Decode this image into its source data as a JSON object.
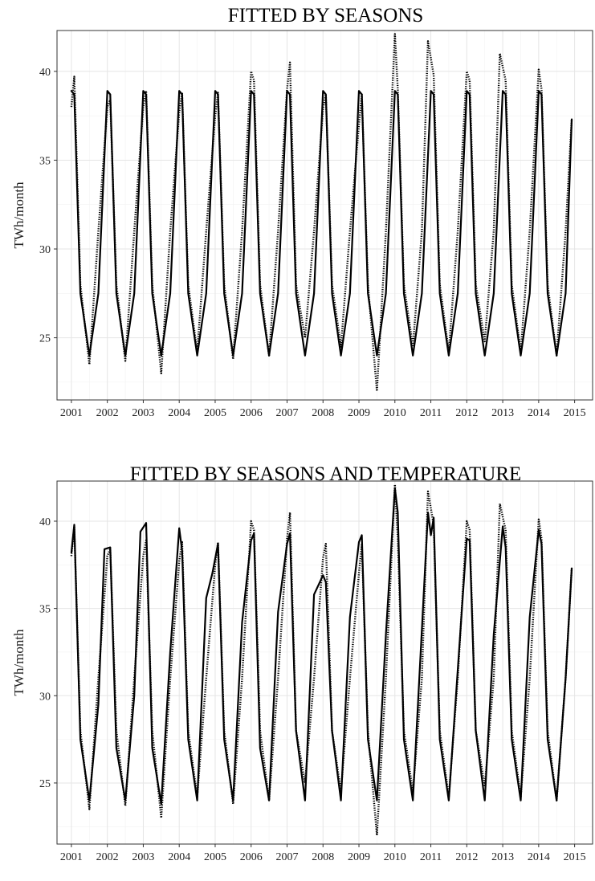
{
  "chart_data": [
    {
      "type": "line",
      "title": "FITTED BY SEASONS",
      "xlabel": "",
      "ylabel": "TWh/month",
      "x_ticks": [
        "2001",
        "2002",
        "2003",
        "2004",
        "2005",
        "2006",
        "2007",
        "2008",
        "2009",
        "2010",
        "2011",
        "2012",
        "2013",
        "2014",
        "2015"
      ],
      "y_ticks": [
        25,
        30,
        35,
        40
      ],
      "xlim": [
        2000.6,
        2015.5
      ],
      "ylim": [
        21.5,
        42.3
      ],
      "grid": true,
      "series": [
        {
          "style": "dotted",
          "x": [
            2001.0,
            2001.08,
            2001.25,
            2001.5,
            2001.75,
            2002.0,
            2002.08,
            2002.25,
            2002.5,
            2002.75,
            2003.0,
            2003.08,
            2003.25,
            2003.5,
            2003.75,
            2004.0,
            2004.08,
            2004.25,
            2004.5,
            2004.75,
            2005.0,
            2005.08,
            2005.25,
            2005.5,
            2005.75,
            2006.0,
            2006.08,
            2006.25,
            2006.5,
            2006.75,
            2007.0,
            2007.08,
            2007.25,
            2007.5,
            2007.75,
            2008.0,
            2008.08,
            2008.25,
            2008.5,
            2008.75,
            2009.0,
            2009.08,
            2009.25,
            2009.5,
            2009.75,
            2010.0,
            2010.08,
            2010.25,
            2010.5,
            2010.75,
            2010.92,
            2011.08,
            2011.25,
            2011.5,
            2011.75,
            2012.0,
            2012.08,
            2012.25,
            2012.5,
            2012.75,
            2012.92,
            2013.08,
            2013.25,
            2013.5,
            2013.75,
            2014.0,
            2014.08,
            2014.25,
            2014.5,
            2014.75,
            2014.92
          ],
          "y": [
            38.0,
            39.7,
            28.0,
            23.5,
            31.0,
            38.0,
            38.4,
            28.0,
            23.7,
            31.0,
            38.0,
            38.9,
            28.0,
            23.0,
            31.0,
            37.7,
            38.8,
            28.0,
            24.2,
            31.0,
            37.5,
            38.8,
            28.0,
            23.8,
            31.0,
            40.0,
            39.5,
            28.0,
            24.0,
            31.0,
            39.0,
            40.5,
            28.0,
            25.0,
            31.0,
            37.9,
            38.7,
            28.0,
            24.5,
            31.0,
            37.0,
            38.7,
            28.0,
            22.0,
            31.0,
            42.1,
            39.0,
            28.0,
            24.5,
            31.0,
            41.7,
            39.8,
            28.0,
            24.2,
            31.0,
            40.0,
            39.5,
            28.0,
            24.8,
            31.0,
            41.0,
            39.5,
            28.0,
            24.2,
            31.0,
            40.1,
            39.0,
            28.0,
            24.0,
            31.0,
            37.3
          ]
        },
        {
          "style": "solid",
          "x": [
            2001.0,
            2001.08,
            2001.25,
            2001.5,
            2001.75,
            2002.0,
            2002.08,
            2002.25,
            2002.5,
            2002.75,
            2003.0,
            2003.08,
            2003.25,
            2003.5,
            2003.75,
            2004.0,
            2004.08,
            2004.25,
            2004.5,
            2004.75,
            2005.0,
            2005.08,
            2005.25,
            2005.5,
            2005.75,
            2006.0,
            2006.08,
            2006.25,
            2006.5,
            2006.75,
            2007.0,
            2007.08,
            2007.25,
            2007.5,
            2007.75,
            2008.0,
            2008.08,
            2008.25,
            2008.5,
            2008.75,
            2009.0,
            2009.08,
            2009.25,
            2009.5,
            2009.75,
            2010.0,
            2010.08,
            2010.25,
            2010.5,
            2010.75,
            2011.0,
            2011.08,
            2011.25,
            2011.5,
            2011.75,
            2012.0,
            2012.08,
            2012.25,
            2012.5,
            2012.75,
            2013.0,
            2013.08,
            2013.25,
            2013.5,
            2013.75,
            2014.0,
            2014.08,
            2014.25,
            2014.5,
            2014.75,
            2014.92
          ],
          "y": [
            38.9,
            38.7,
            27.5,
            24.0,
            27.5,
            38.9,
            38.7,
            27.5,
            24.0,
            27.5,
            38.9,
            38.7,
            27.5,
            24.0,
            27.5,
            38.9,
            38.7,
            27.5,
            24.0,
            27.5,
            38.9,
            38.7,
            27.5,
            24.0,
            27.5,
            38.9,
            38.7,
            27.5,
            24.0,
            27.5,
            38.9,
            38.7,
            27.5,
            24.0,
            27.5,
            38.9,
            38.7,
            27.5,
            24.0,
            27.5,
            38.9,
            38.7,
            27.5,
            24.0,
            27.5,
            38.9,
            38.7,
            27.5,
            24.0,
            27.5,
            38.9,
            38.7,
            27.5,
            24.0,
            27.5,
            38.9,
            38.7,
            27.5,
            24.0,
            27.5,
            38.9,
            38.7,
            27.5,
            24.0,
            27.5,
            38.9,
            38.7,
            27.5,
            24.0,
            27.5,
            37.3
          ]
        }
      ]
    },
    {
      "type": "line",
      "title": "FITTED BY SEASONS AND TEMPERATURE",
      "xlabel": "",
      "ylabel": "TWh/month",
      "x_ticks": [
        "2001",
        "2002",
        "2003",
        "2004",
        "2005",
        "2006",
        "2007",
        "2008",
        "2009",
        "2010",
        "2011",
        "2012",
        "2013",
        "2014",
        "2015"
      ],
      "y_ticks": [
        25,
        30,
        35,
        40
      ],
      "xlim": [
        2000.6,
        2015.5
      ],
      "ylim": [
        21.5,
        42.3
      ],
      "grid": true,
      "series": [
        {
          "style": "dotted",
          "x": [
            2001.0,
            2001.08,
            2001.25,
            2001.5,
            2001.75,
            2002.0,
            2002.08,
            2002.25,
            2002.5,
            2002.75,
            2003.0,
            2003.08,
            2003.25,
            2003.5,
            2003.75,
            2004.0,
            2004.08,
            2004.25,
            2004.5,
            2004.75,
            2005.0,
            2005.08,
            2005.25,
            2005.5,
            2005.75,
            2006.0,
            2006.08,
            2006.25,
            2006.5,
            2006.75,
            2007.0,
            2007.08,
            2007.25,
            2007.5,
            2007.75,
            2008.0,
            2008.08,
            2008.25,
            2008.5,
            2008.75,
            2009.0,
            2009.08,
            2009.25,
            2009.5,
            2009.75,
            2010.0,
            2010.08,
            2010.25,
            2010.5,
            2010.75,
            2010.92,
            2011.08,
            2011.25,
            2011.5,
            2011.75,
            2012.0,
            2012.08,
            2012.25,
            2012.5,
            2012.75,
            2012.92,
            2013.08,
            2013.25,
            2013.5,
            2013.75,
            2014.0,
            2014.08,
            2014.25,
            2014.5,
            2014.75,
            2014.92
          ],
          "y": [
            38.0,
            39.7,
            28.0,
            23.5,
            31.0,
            38.0,
            38.4,
            28.0,
            23.7,
            31.0,
            38.0,
            38.9,
            28.0,
            23.0,
            31.0,
            37.7,
            38.8,
            28.0,
            24.2,
            31.0,
            37.5,
            38.8,
            28.0,
            23.8,
            31.0,
            40.0,
            39.5,
            28.0,
            24.0,
            31.0,
            39.0,
            40.5,
            28.0,
            25.0,
            31.0,
            37.9,
            38.7,
            28.0,
            24.5,
            31.0,
            37.0,
            38.7,
            28.0,
            22.0,
            31.0,
            42.1,
            39.0,
            28.0,
            24.5,
            31.0,
            41.7,
            39.8,
            28.0,
            24.2,
            31.0,
            40.0,
            39.5,
            28.0,
            24.8,
            31.0,
            41.0,
            39.5,
            28.0,
            24.2,
            31.0,
            40.1,
            39.0,
            28.0,
            24.0,
            31.0,
            37.3
          ]
        },
        {
          "style": "solid",
          "x": [
            2001.0,
            2001.08,
            2001.25,
            2001.5,
            2001.75,
            2001.92,
            2002.08,
            2002.25,
            2002.5,
            2002.75,
            2002.92,
            2003.08,
            2003.25,
            2003.5,
            2003.75,
            2004.0,
            2004.08,
            2004.25,
            2004.5,
            2004.75,
            2004.92,
            2005.08,
            2005.25,
            2005.5,
            2005.75,
            2006.0,
            2006.08,
            2006.25,
            2006.5,
            2006.75,
            2007.0,
            2007.08,
            2007.25,
            2007.5,
            2007.75,
            2008.0,
            2008.08,
            2008.25,
            2008.5,
            2008.75,
            2009.0,
            2009.08,
            2009.25,
            2009.5,
            2009.75,
            2010.0,
            2010.08,
            2010.25,
            2010.5,
            2010.75,
            2010.92,
            2011.0,
            2011.08,
            2011.25,
            2011.5,
            2011.75,
            2012.0,
            2012.08,
            2012.25,
            2012.5,
            2012.75,
            2013.0,
            2013.08,
            2013.25,
            2013.5,
            2013.75,
            2014.0,
            2014.08,
            2014.25,
            2014.5,
            2014.75,
            2014.92
          ],
          "y": [
            38.2,
            39.8,
            27.5,
            24.0,
            29.5,
            38.4,
            38.5,
            27.0,
            24.0,
            30.0,
            39.4,
            39.9,
            27.0,
            23.8,
            32.5,
            39.6,
            38.3,
            27.5,
            24.0,
            35.6,
            37.0,
            38.7,
            27.5,
            24.0,
            34.2,
            38.9,
            39.3,
            27.0,
            24.0,
            34.8,
            38.7,
            39.3,
            28.0,
            24.0,
            35.8,
            36.9,
            36.5,
            28.0,
            24.0,
            34.5,
            38.8,
            39.2,
            27.5,
            24.0,
            33.5,
            41.9,
            40.5,
            27.5,
            24.0,
            33.8,
            40.5,
            39.2,
            40.2,
            27.5,
            24.0,
            31.5,
            39.0,
            38.9,
            28.0,
            24.0,
            33.5,
            39.7,
            38.5,
            27.5,
            24.0,
            34.5,
            39.5,
            38.7,
            27.5,
            24.0,
            31.0,
            37.3
          ]
        }
      ]
    }
  ]
}
